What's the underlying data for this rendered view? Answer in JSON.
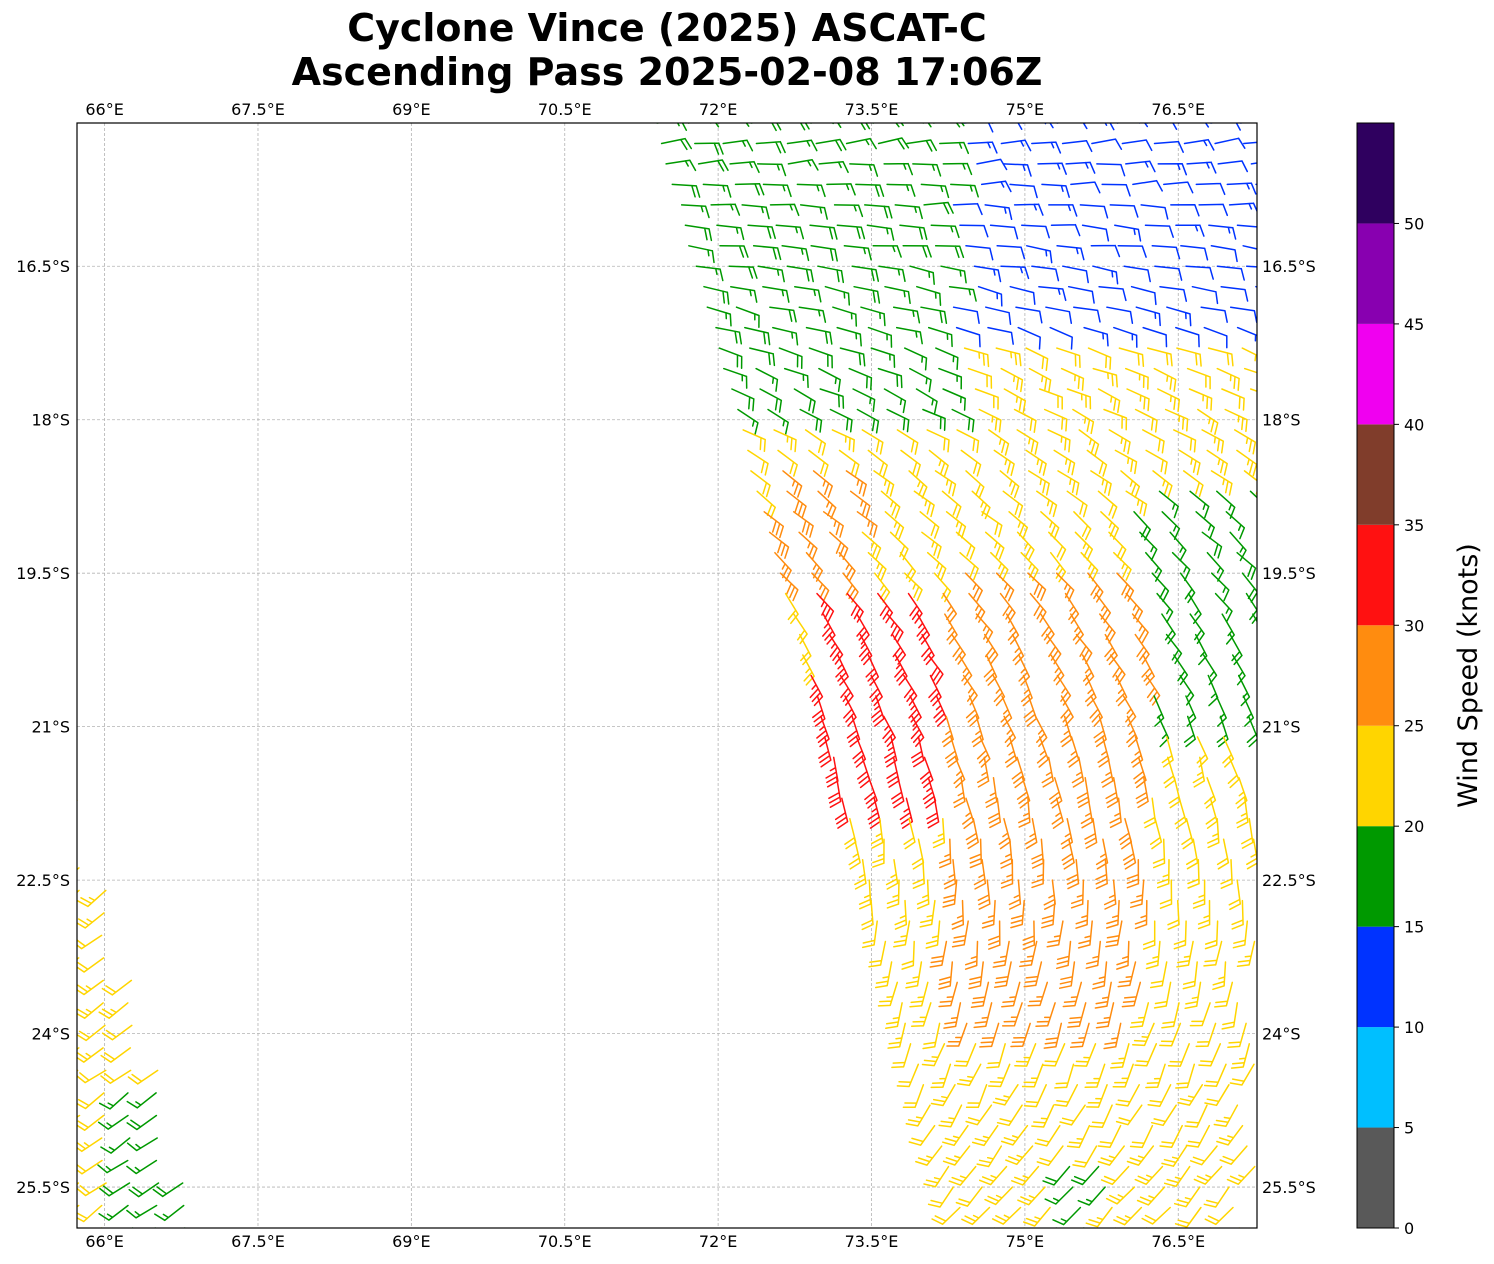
{
  "chart_data": {
    "type": "wind-barb-map",
    "title_lines": [
      "Cyclone Vince (2025) ASCAT-C",
      "Ascending Pass 2025-02-08 17:06Z"
    ],
    "x_ticks": [
      "66°E",
      "67.5°E",
      "69°E",
      "70.5°E",
      "72°E",
      "73.5°E",
      "75°E",
      "76.5°E"
    ],
    "x_tick_values": [
      66,
      67.5,
      69,
      70.5,
      72,
      73.5,
      75,
      76.5
    ],
    "y_ticks": [
      "16.5°S",
      "18°S",
      "19.5°S",
      "21°S",
      "22.5°S",
      "24°S",
      "25.5°S"
    ],
    "y_tick_values": [
      -16.5,
      -18,
      -19.5,
      -21,
      -22.5,
      -24,
      -25.5
    ],
    "lon_range": [
      65.73,
      77.27
    ],
    "lat_range": [
      -25.9,
      -15.1
    ],
    "grid": true,
    "colorbar": {
      "label": "Wind Speed (knots)",
      "range": [
        0,
        55
      ],
      "bounds": [
        0,
        5,
        10,
        15,
        20,
        25,
        30,
        35,
        40,
        45,
        50,
        55
      ],
      "colors": [
        "#595959",
        "#00bfff",
        "#0033ff",
        "#009900",
        "#ffd500",
        "#ff8c0f",
        "#ff1111",
        "#803d2b",
        "#f000f0",
        "#8800b0",
        "#2f005f"
      ],
      "tick_labels": [
        "0",
        "5",
        "10",
        "15",
        "20",
        "25",
        "30",
        "35",
        "40",
        "45",
        "50"
      ],
      "tick_values": [
        0,
        5,
        10,
        15,
        20,
        25,
        30,
        35,
        40,
        45,
        50
      ]
    },
    "swaths": [
      {
        "name": "east",
        "lat_range": [
          -15.1,
          -25.9
        ],
        "lon_west_top": 71.4,
        "lon_west_bottom": 74.4,
        "lon_east": 77.27,
        "lat_step": 0.2,
        "lon_step": 0.3,
        "speed_zones": [
          {
            "lat_min": -17.2,
            "lat_max": -15.1,
            "lon_min": 74.3,
            "lon_max": 77.3,
            "speed": 12
          },
          {
            "lat_min": -18.0,
            "lat_max": -15.1,
            "lon_min": 71.4,
            "lon_max": 74.3,
            "speed": 17
          },
          {
            "lat_min": -19.3,
            "lat_max": -17.2,
            "lon_min": 73.4,
            "lon_max": 75.4,
            "speed": 23
          },
          {
            "lat_min": -19.5,
            "lat_max": -18.3,
            "lon_min": 72.4,
            "lon_max": 73.4,
            "speed": 27
          },
          {
            "lat_min": -21.7,
            "lat_max": -19.5,
            "lon_min": 72.9,
            "lon_max": 74.2,
            "speed": 32
          },
          {
            "lat_min": -24.0,
            "lat_max": -19.3,
            "lon_min": 74.2,
            "lon_max": 76.2,
            "speed": 27
          },
          {
            "lat_min": -21.0,
            "lat_max": -18.5,
            "lon_min": 76.0,
            "lon_max": 77.3,
            "speed": 17
          },
          {
            "lat_min": -25.9,
            "lat_max": -21.0,
            "lon_min": 75.8,
            "lon_max": 77.3,
            "speed": 22
          },
          {
            "lat_min": -25.9,
            "lat_max": -25.2,
            "lon_min": 75.3,
            "lon_max": 77.3,
            "speed": 17
          },
          {
            "lat_min": -25.9,
            "lat_max": -22.3,
            "lon_min": 73.5,
            "lon_max": 76.0,
            "speed": 23
          }
        ],
        "default_speed": 23,
        "direction_north_deg": 80,
        "direction_south_deg": 225
      },
      {
        "name": "west",
        "lat_range": [
          -21.5,
          -25.9
        ],
        "lon_west": 65.73,
        "lon_east_top": 65.73,
        "lon_east_bottom": 66.95,
        "lat_step": 0.22,
        "lon_step": 0.26,
        "speed_zones": [
          {
            "lat_min": -25.9,
            "lat_max": -24.4,
            "lon_min": 66.2,
            "lon_max": 67.0,
            "speed": 17
          }
        ],
        "default_speed": 22,
        "direction_north_deg": 230,
        "direction_south_deg": 235
      }
    ]
  }
}
